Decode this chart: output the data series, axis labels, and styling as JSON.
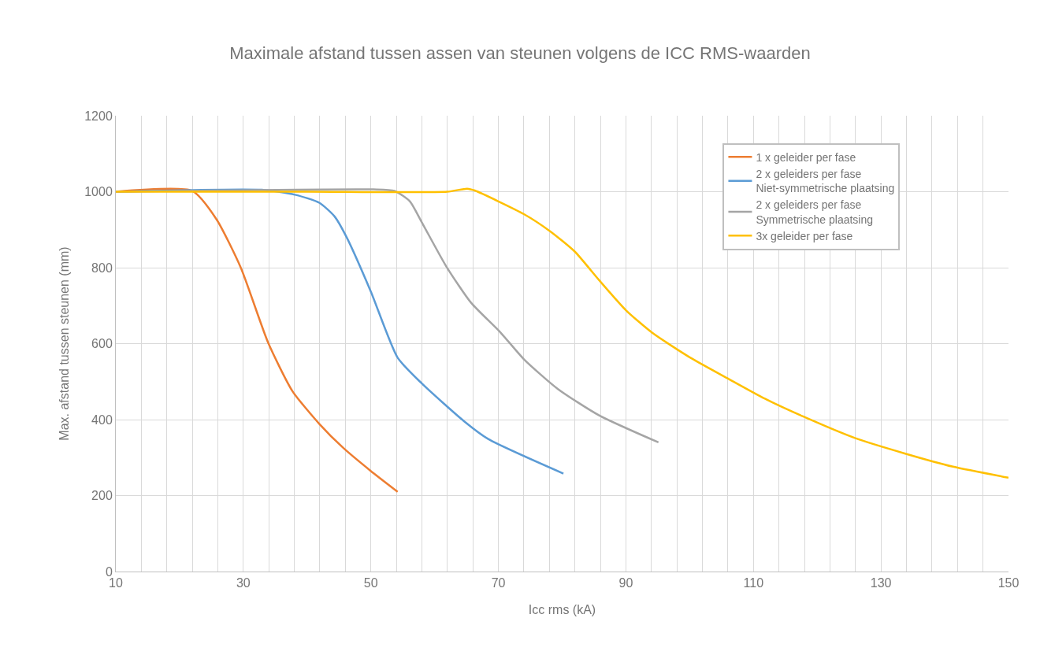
{
  "chart_data": {
    "type": "line",
    "title": "Maximale afstand tussen assen van steunen volgens de ICC RMS-waarden",
    "xlabel": "Icc rms (kA)",
    "ylabel": "Max. afstand tussen steunen (mm)",
    "xlim": [
      10,
      150
    ],
    "ylim": [
      0,
      1200
    ],
    "xticks": [
      10,
      {
        "value": 14,
        "label": null
      },
      {
        "value": 18,
        "label": null
      },
      {
        "value": 22,
        "label": null
      },
      {
        "value": 26,
        "label": null
      },
      30,
      {
        "value": 34,
        "label": null
      },
      {
        "value": 38,
        "label": null
      },
      {
        "value": 42,
        "label": null
      },
      {
        "value": 46,
        "label": null
      },
      50,
      {
        "value": 54,
        "label": null
      },
      {
        "value": 58,
        "label": null
      },
      {
        "value": 62,
        "label": null
      },
      {
        "value": 66,
        "label": null
      },
      70,
      {
        "value": 74,
        "label": null
      },
      {
        "value": 78,
        "label": null
      },
      {
        "value": 82,
        "label": null
      },
      {
        "value": 86,
        "label": null
      },
      90,
      {
        "value": 94,
        "label": null
      },
      {
        "value": 98,
        "label": null
      },
      {
        "value": 102,
        "label": null
      },
      {
        "value": 106,
        "label": null
      },
      110,
      {
        "value": 114,
        "label": null
      },
      {
        "value": 118,
        "label": null
      },
      {
        "value": 122,
        "label": null
      },
      {
        "value": 126,
        "label": null
      },
      130,
      {
        "value": 134,
        "label": null
      },
      {
        "value": 138,
        "label": null
      },
      {
        "value": 142,
        "label": null
      },
      {
        "value": 146,
        "label": null
      },
      150
    ],
    "yticks": [
      0,
      200,
      400,
      600,
      800,
      1000,
      1200
    ],
    "grid": true,
    "legend": "top right",
    "marker": "none",
    "line_style": "solid",
    "series": [
      {
        "name": "1 x geleider per fase",
        "color": "#ed7d31",
        "x": [
          10,
          22,
          25.8,
          29.6,
          33.9,
          37.7,
          41.9,
          45.7,
          49.9,
          54.2
        ],
        "values": [
          1000,
          1002,
          927,
          800,
          602,
          475,
          389,
          325,
          266,
          210
        ]
      },
      {
        "name": "2 x geleiders per fase\nNiet-symmetrische plaatsing",
        "color": "#5b9bd5",
        "x": [
          10,
          32.9,
          38.1,
          41.9,
          44.3,
          46.2,
          50,
          54.2,
          58,
          64.6,
          68.4,
          80.2
        ],
        "values": [
          1000,
          1005,
          992,
          971,
          935,
          880,
          737,
          563,
          495,
          396,
          349,
          258
        ]
      },
      {
        "name": "2 x geleiders per fase\nSymmetrische plaatsing",
        "color": "#a5a5a5",
        "x": [
          10,
          50.4,
          53.7,
          56.1,
          58,
          61.8,
          65.7,
          70.3,
          74,
          79.3,
          85.8,
          95.1
        ],
        "values": [
          1000,
          1006,
          1002,
          975,
          919,
          804,
          708,
          630,
          559,
          481,
          411,
          340
        ]
      },
      {
        "name": "3x geleider per fase",
        "color": "#ffc000",
        "x": [
          10,
          40,
          62,
          65.1,
          66.3,
          74,
          78.1,
          82,
          85.8,
          90,
          94.1,
          100,
          105.9,
          111.8,
          117.7,
          126,
          133.7,
          141.3,
          150
        ],
        "values": [
          1000,
          1000,
          1000,
          1008,
          1003,
          941,
          896,
          842,
          767,
          688,
          629,
          564,
          509,
          455,
          409,
          351,
          311,
          276,
          247
        ]
      }
    ]
  }
}
